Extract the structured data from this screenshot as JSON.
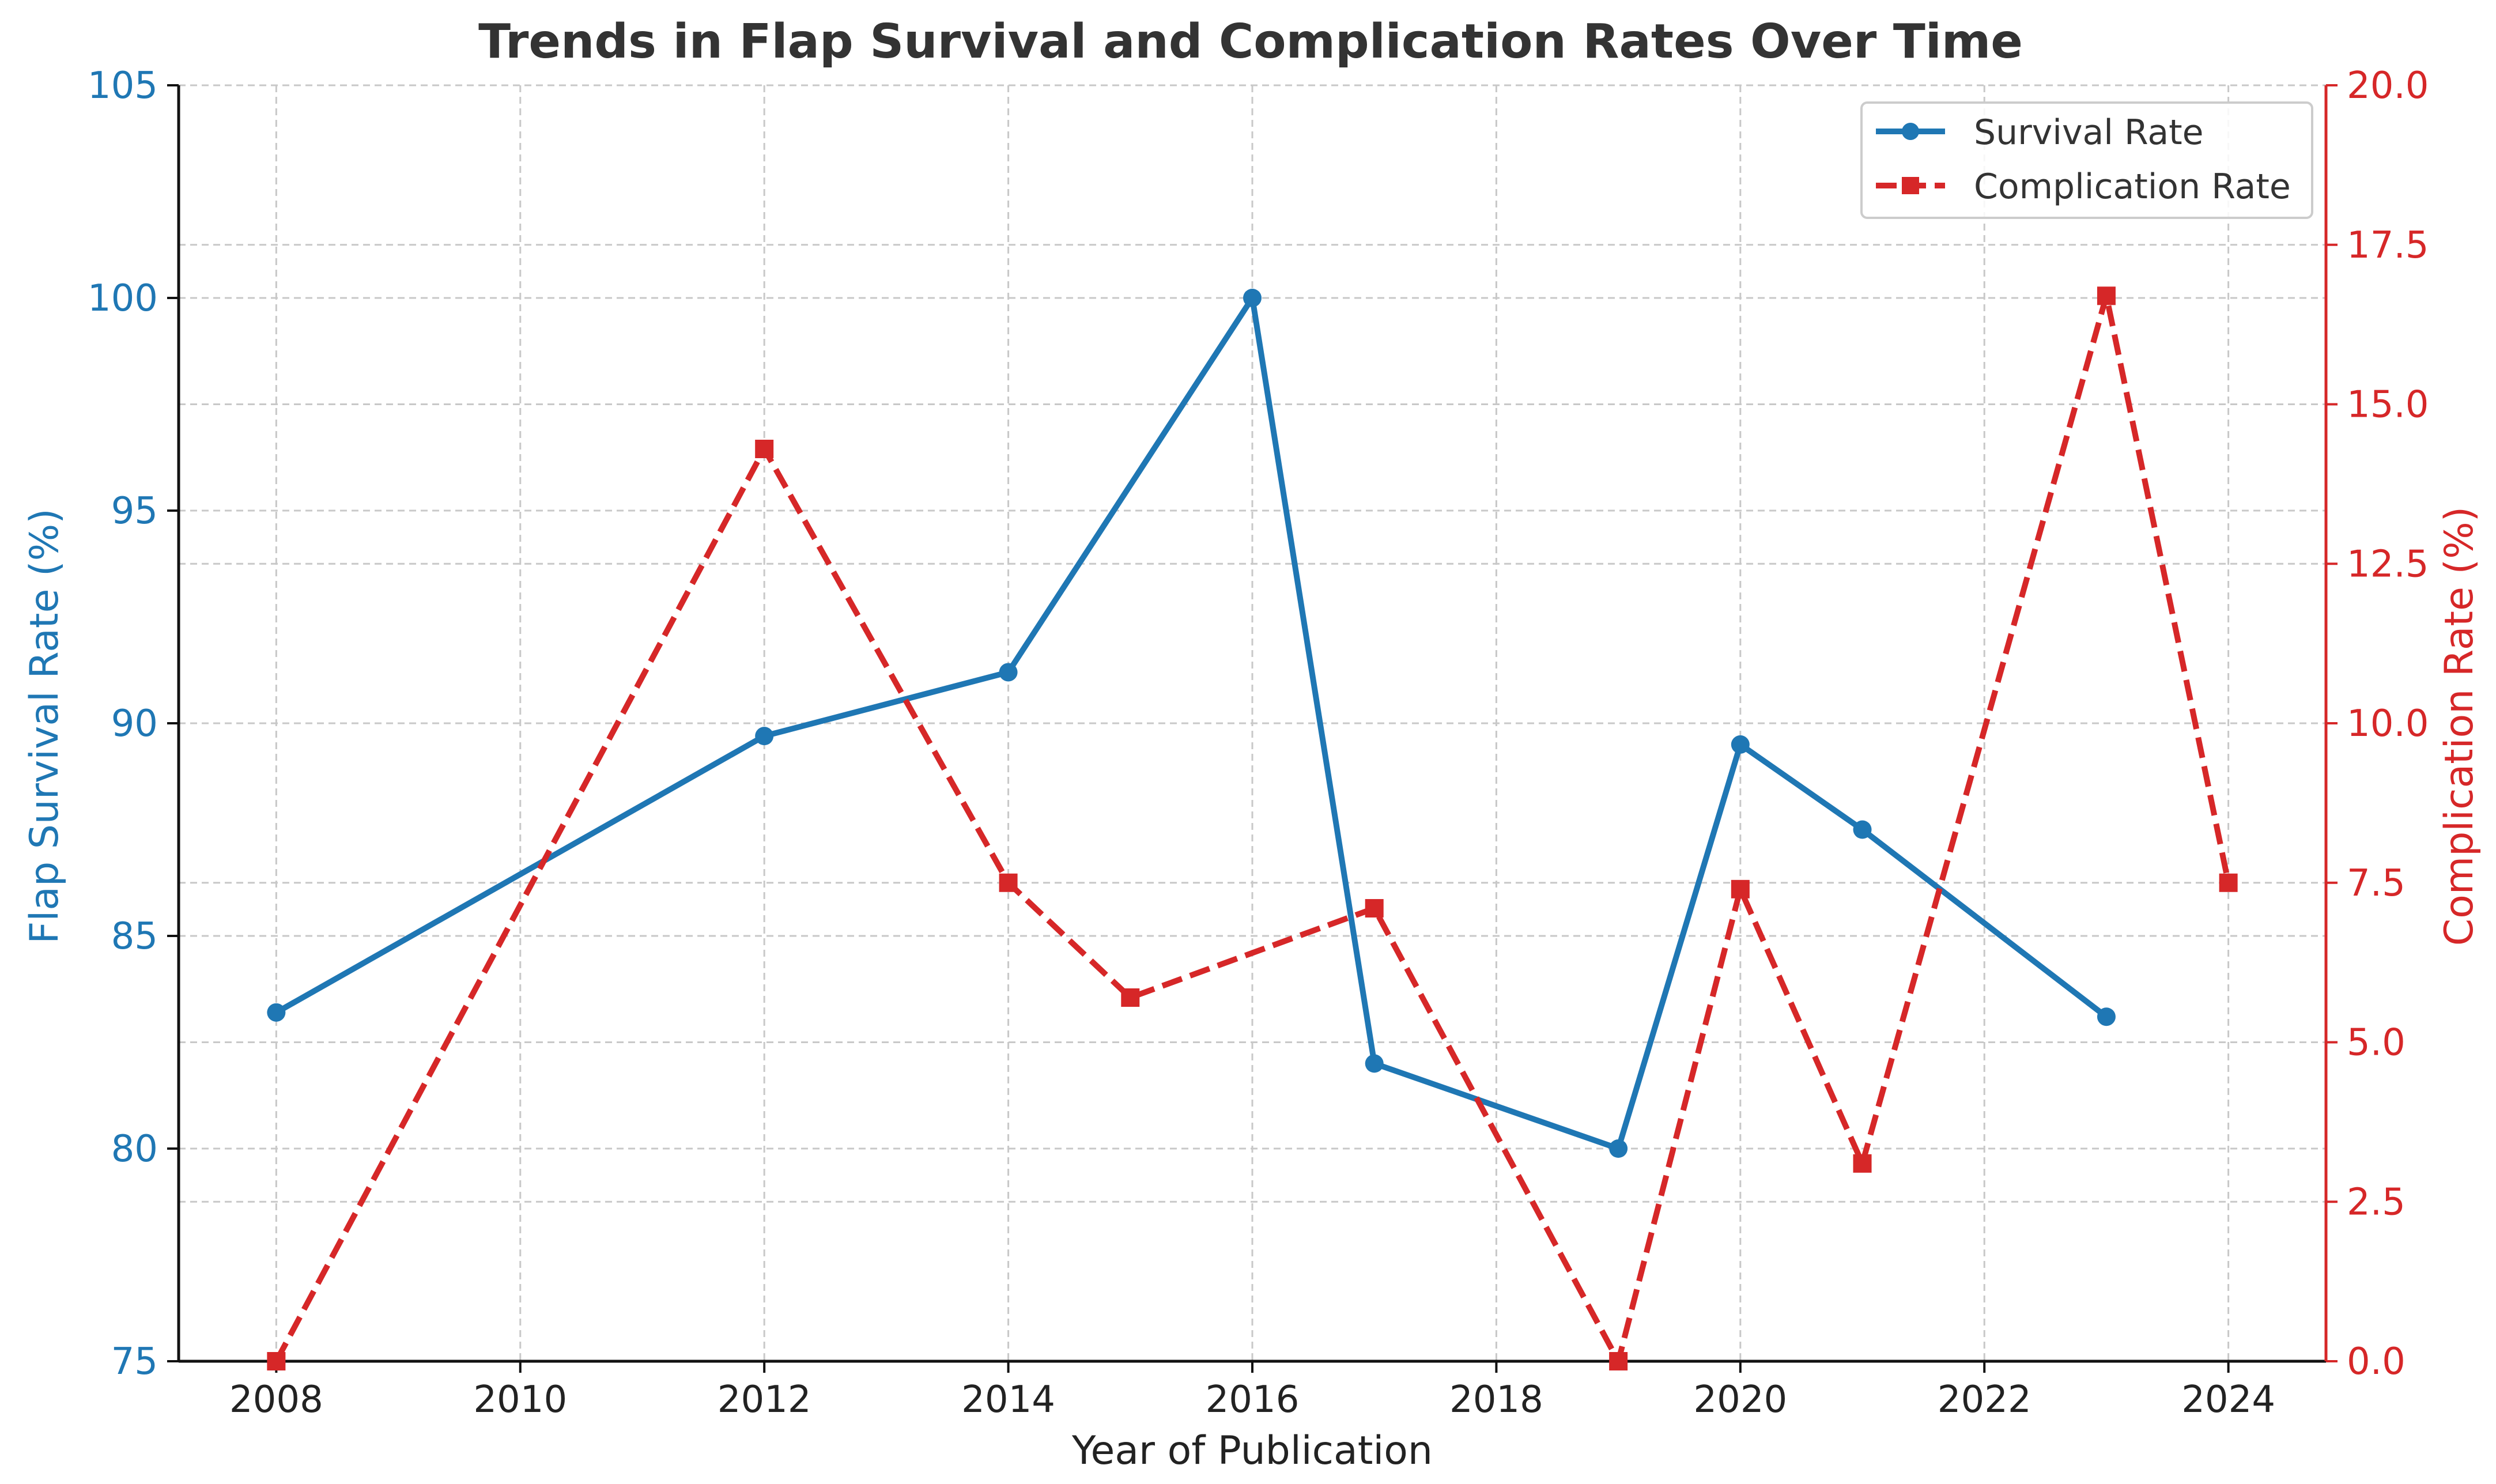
{
  "chart_data": {
    "type": "line",
    "title": "Trends in Flap Survival and Complication Rates Over Time",
    "xlabel": "Year of Publication",
    "ylabel_left": "Flap Survival Rate (%)",
    "ylabel_right": "Complication Rate (%)",
    "xlim": [
      2007.2,
      2024.8
    ],
    "ylim_left": [
      75,
      105
    ],
    "ylim_right": [
      0,
      20
    ],
    "x_ticks": [
      2008,
      2010,
      2012,
      2014,
      2016,
      2018,
      2020,
      2022,
      2024
    ],
    "x_tick_labels": [
      "2008",
      "2010",
      "2012",
      "2014",
      "2016",
      "2018",
      "2020",
      "2022",
      "2024"
    ],
    "y_left_ticks": [
      75,
      80,
      85,
      90,
      95,
      100,
      105
    ],
    "y_left_tick_labels": [
      "75",
      "80",
      "85",
      "90",
      "95",
      "100",
      "105"
    ],
    "y_right_ticks": [
      0,
      2.5,
      5,
      7.5,
      10,
      12.5,
      15,
      17.5,
      20
    ],
    "y_right_tick_labels": [
      "0.0",
      "2.5",
      "5.0",
      "7.5",
      "10.0",
      "12.5",
      "15.0",
      "17.5",
      "20.0"
    ],
    "grid": true,
    "legend_position": "top-right",
    "series": [
      {
        "name": "Survival Rate",
        "axis": "left",
        "color": "#1f77b4",
        "style": "solid",
        "marker": "circle",
        "x": [
          2008,
          2012,
          2014,
          2016,
          2017,
          2019,
          2020,
          2021,
          2023
        ],
        "values": [
          83.2,
          89.7,
          91.2,
          100.0,
          82.0,
          80.0,
          89.5,
          87.5,
          83.1
        ]
      },
      {
        "name": "Complication Rate",
        "axis": "right",
        "color": "#d62728",
        "style": "dashed",
        "marker": "square",
        "x": [
          2008,
          2012,
          2014,
          2015,
          2017,
          2019,
          2020,
          2021,
          2023,
          2024
        ],
        "values": [
          0.0,
          14.3,
          7.5,
          5.7,
          7.1,
          0.0,
          7.4,
          3.1,
          16.7,
          7.5
        ]
      }
    ]
  }
}
